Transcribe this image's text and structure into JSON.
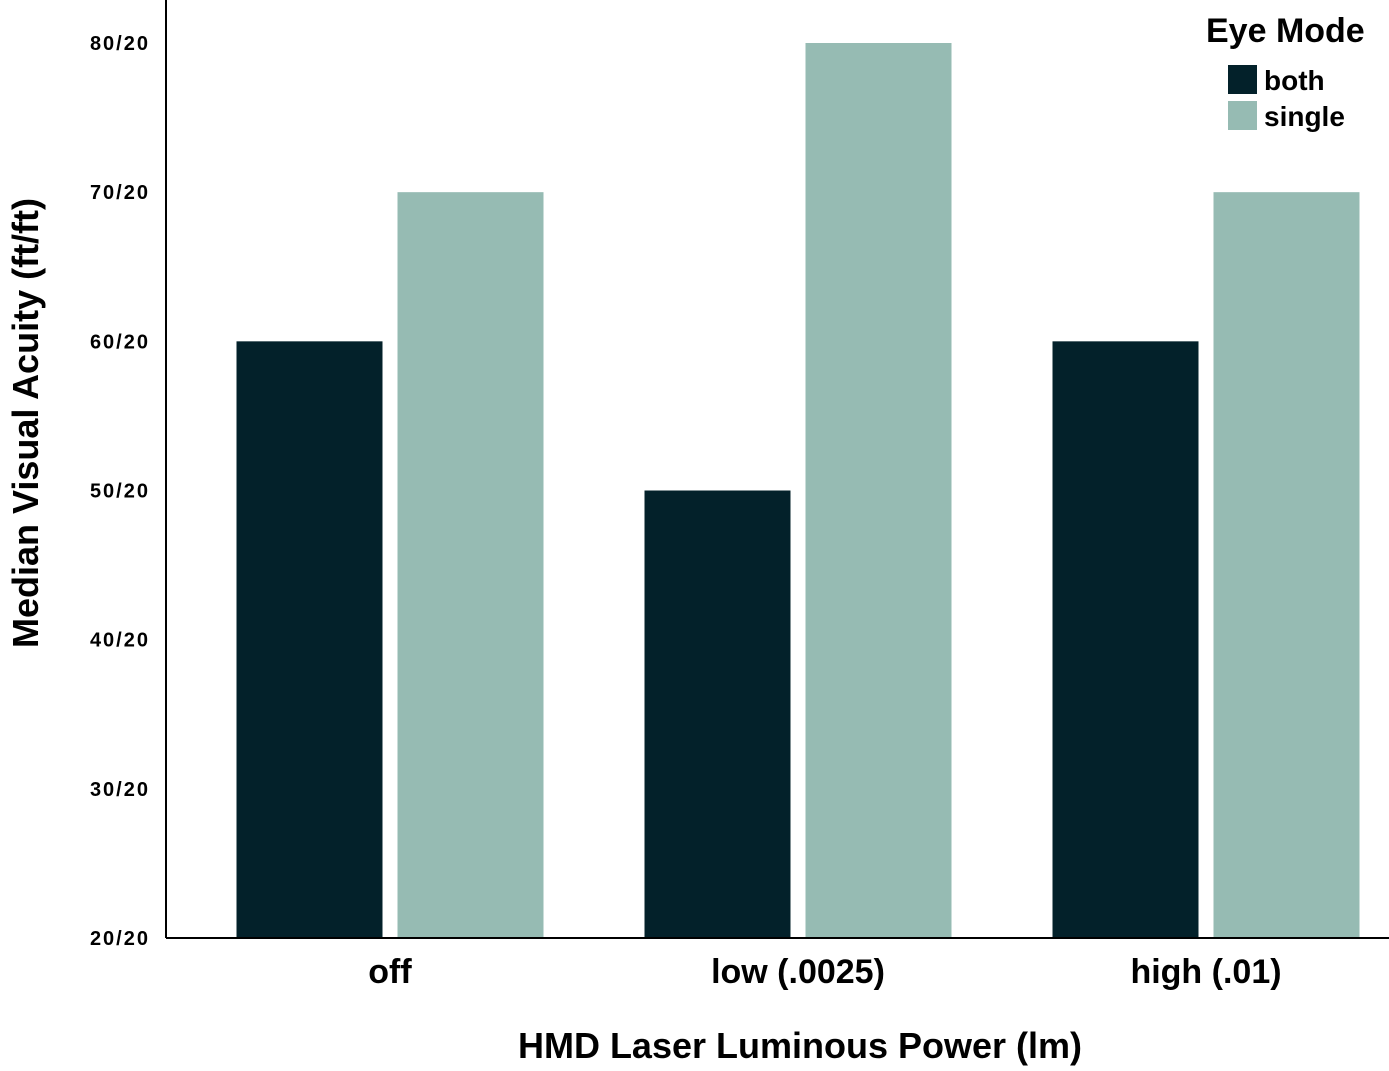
{
  "chart_data": {
    "type": "bar",
    "title": "",
    "xlabel": "HMD Laser Luminous Power (lm)",
    "ylabel": "Median Visual Acuity (ft/ft)",
    "categories": [
      "off",
      "low (.0025)",
      "high (.01)"
    ],
    "series": [
      {
        "name": "both",
        "color": "#03212a",
        "values": [
          60,
          50,
          60
        ]
      },
      {
        "name": "single",
        "color": "#96bbb3",
        "values": [
          70,
          80,
          70
        ]
      }
    ],
    "ylim": [
      20,
      80
    ],
    "yticks": [
      {
        "value": 20,
        "label": "20/20"
      },
      {
        "value": 30,
        "label": "30/20"
      },
      {
        "value": 40,
        "label": "40/20"
      },
      {
        "value": 50,
        "label": "50/20"
      },
      {
        "value": 60,
        "label": "60/20"
      },
      {
        "value": 70,
        "label": "70/20"
      },
      {
        "value": 80,
        "label": "80/20"
      }
    ],
    "legend": {
      "title": "Eye Mode",
      "position": "top-right"
    },
    "grid": false
  }
}
